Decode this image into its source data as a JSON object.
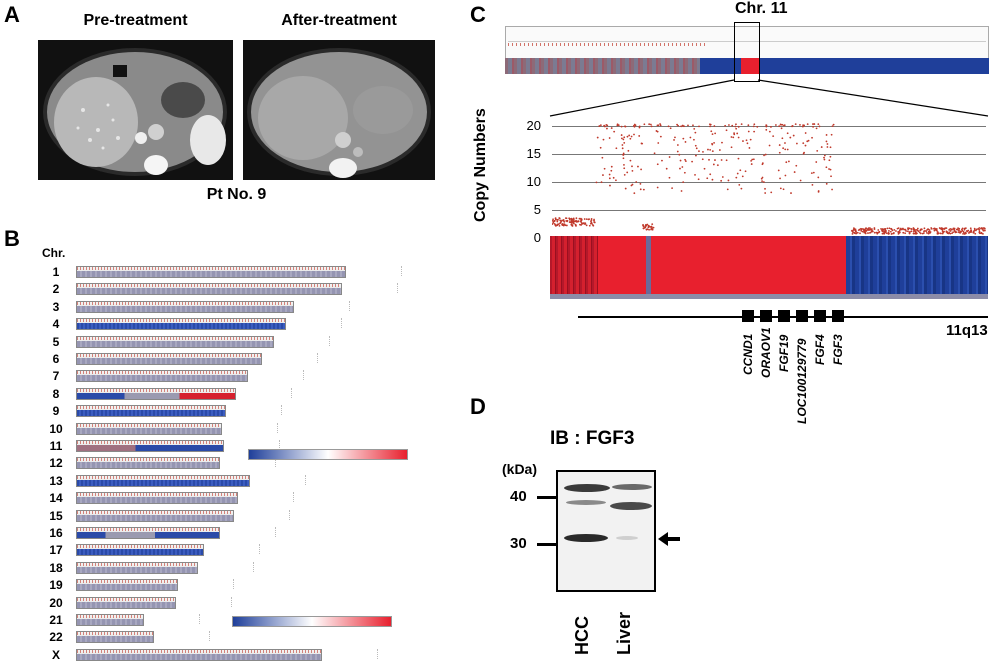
{
  "panels": {
    "a": {
      "letter": "A",
      "pre_label": "Pre-treatment",
      "post_label": "After-treatment",
      "patient": "Pt No. 9"
    },
    "b": {
      "letter": "B",
      "chr_header": "Chr.",
      "chromosomes": [
        "1",
        "2",
        "3",
        "4",
        "5",
        "6",
        "7",
        "8",
        "9",
        "10",
        "11",
        "12",
        "13",
        "14",
        "15",
        "16",
        "17",
        "18",
        "19",
        "20",
        "21",
        "22",
        "X"
      ]
    },
    "c": {
      "letter": "C",
      "title": "Chr. 11",
      "ylabel": "Copy Numbers",
      "yticks": [
        "20",
        "15",
        "10",
        "5",
        "0"
      ],
      "band": "11q13",
      "genes": [
        "CCND1",
        "ORAOV1",
        "FGF19",
        "LOC100129779",
        "FGF4",
        "FGF3"
      ]
    },
    "d": {
      "letter": "D",
      "title": "IB : FGF3",
      "unit": "(kDa)",
      "markers": [
        "40",
        "30"
      ],
      "lanes": [
        "HCC",
        "Liver"
      ]
    }
  },
  "colors": {
    "gain": "#e8202e",
    "loss": "#1f3f9a",
    "neutral": "#8c8ca8"
  }
}
